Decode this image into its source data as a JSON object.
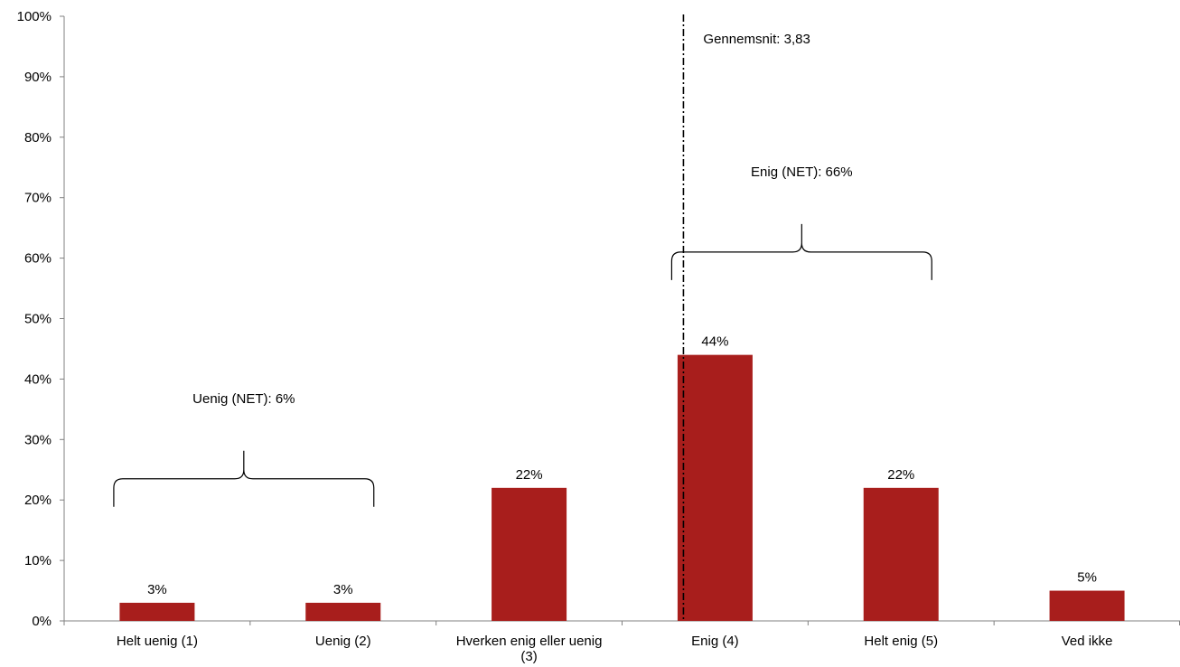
{
  "chart_data": {
    "type": "bar",
    "categories": [
      "Helt uenig (1)",
      "Uenig (2)",
      "Hverken enig eller uenig (3)",
      "Enig (4)",
      "Helt enig (5)",
      "Ved ikke"
    ],
    "category_lines": [
      [
        "Helt uenig (1)"
      ],
      [
        "Uenig (2)"
      ],
      [
        "Hverken enig eller uenig",
        "(3)"
      ],
      [
        "Enig (4)"
      ],
      [
        "Helt enig (5)"
      ],
      [
        "Ved ikke"
      ]
    ],
    "values": [
      3,
      3,
      22,
      44,
      22,
      5
    ],
    "data_labels": [
      "3%",
      "3%",
      "22%",
      "44%",
      "22%",
      "5%"
    ],
    "ylim": [
      0,
      100
    ],
    "yticks": [
      0,
      10,
      20,
      30,
      40,
      50,
      60,
      70,
      80,
      90,
      100
    ],
    "ytick_labels": [
      "0%",
      "10%",
      "20%",
      "30%",
      "40%",
      "50%",
      "60%",
      "70%",
      "80%",
      "90%",
      "100%"
    ],
    "bar_color": "#a81e1c",
    "grid": false,
    "legend": "none",
    "mean": {
      "value": 3.83,
      "label": "Gennemsnit: 3,83"
    },
    "annotations": [
      {
        "label": "Uenig (NET): 6%",
        "from_category": 0,
        "to_category": 1,
        "y": 23.5
      },
      {
        "label": "Enig (NET): 66%",
        "from_category": 3,
        "to_category": 4,
        "y": 61
      }
    ]
  }
}
